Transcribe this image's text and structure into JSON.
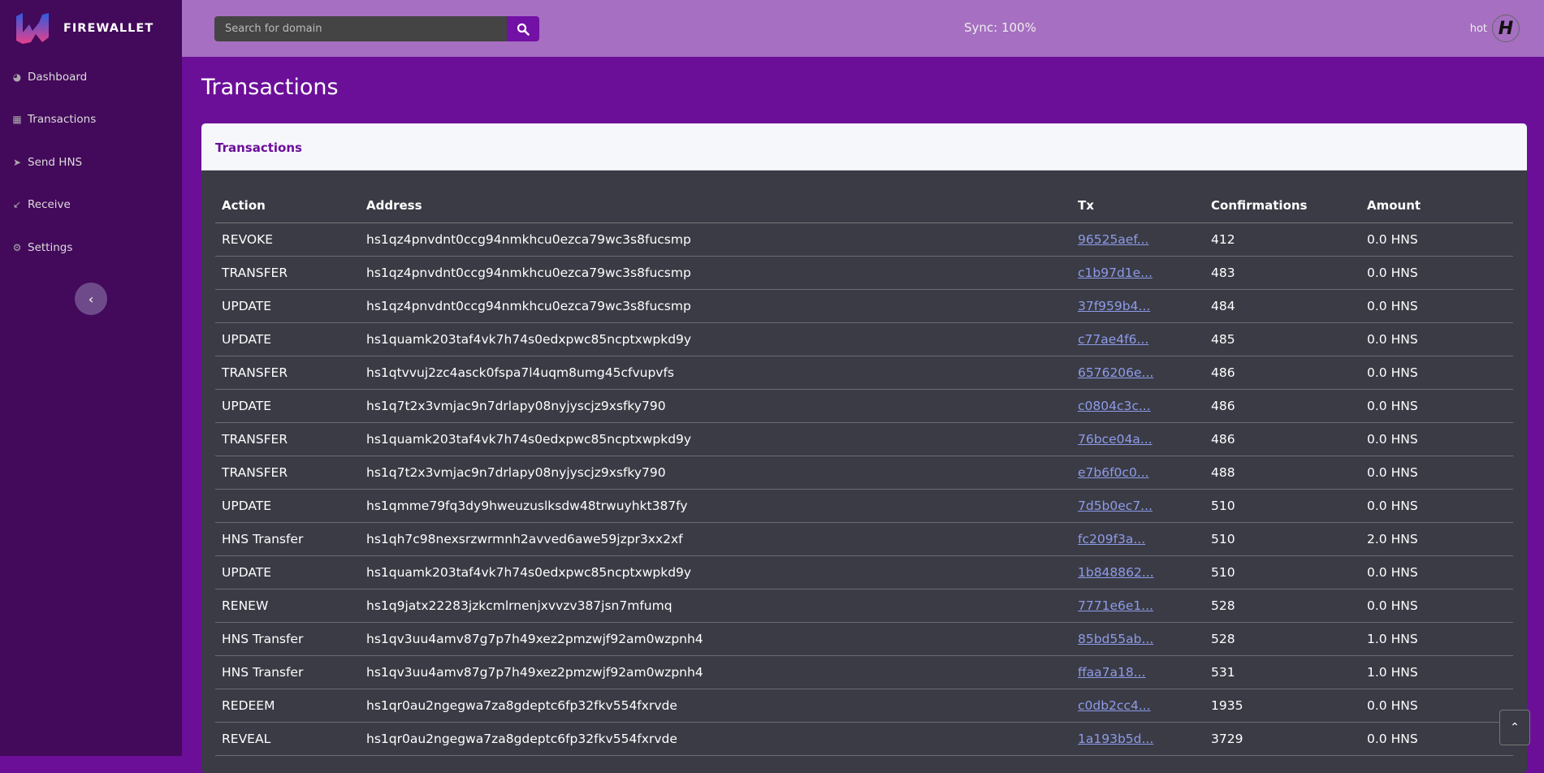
{
  "brand": {
    "name": "FIREWALLET"
  },
  "sidebar": {
    "items": [
      {
        "label": "Dashboard",
        "icon": "dashboard-icon"
      },
      {
        "label": "Transactions",
        "icon": "table-icon"
      },
      {
        "label": "Send HNS",
        "icon": "send-icon"
      },
      {
        "label": "Receive",
        "icon": "arrow-down-left-icon"
      },
      {
        "label": "Settings",
        "icon": "gear-icon"
      }
    ],
    "collapse_icon": "chevron-left-icon"
  },
  "topbar": {
    "search_placeholder": "Search for domain",
    "sync": "Sync: 100%",
    "wallet": "hot"
  },
  "page": {
    "title": "Transactions",
    "card_title": "Transactions"
  },
  "table": {
    "headers": [
      "Action",
      "Address",
      "Tx",
      "Confirmations",
      "Amount"
    ],
    "rows": [
      [
        "REVOKE",
        "hs1qz4pnvdnt0ccg94nmkhcu0ezca79wc3s8fucsmp",
        "96525aef...",
        "412",
        "0.0 HNS"
      ],
      [
        "TRANSFER",
        "hs1qz4pnvdnt0ccg94nmkhcu0ezca79wc3s8fucsmp",
        "c1b97d1e...",
        "483",
        "0.0 HNS"
      ],
      [
        "UPDATE",
        "hs1qz4pnvdnt0ccg94nmkhcu0ezca79wc3s8fucsmp",
        "37f959b4...",
        "484",
        "0.0 HNS"
      ],
      [
        "UPDATE",
        "hs1quamk203taf4vk7h74s0edxpwc85ncptxwpkd9y",
        "c77ae4f6...",
        "485",
        "0.0 HNS"
      ],
      [
        "TRANSFER",
        "hs1qtvvuj2zc4asck0fspa7l4uqm8umg45cfvupvfs",
        "6576206e...",
        "486",
        "0.0 HNS"
      ],
      [
        "UPDATE",
        "hs1q7t2x3vmjac9n7drlapy08nyjyscjz9xsfky790",
        "c0804c3c...",
        "486",
        "0.0 HNS"
      ],
      [
        "TRANSFER",
        "hs1quamk203taf4vk7h74s0edxpwc85ncptxwpkd9y",
        "76bce04a...",
        "486",
        "0.0 HNS"
      ],
      [
        "TRANSFER",
        "hs1q7t2x3vmjac9n7drlapy08nyjyscjz9xsfky790",
        "e7b6f0c0...",
        "488",
        "0.0 HNS"
      ],
      [
        "UPDATE",
        "hs1qmme79fq3dy9hweuzuslksdw48trwuyhkt387fy",
        "7d5b0ec7...",
        "510",
        "0.0 HNS"
      ],
      [
        "HNS Transfer",
        "hs1qh7c98nexsrzwrmnh2avved6awe59jzpr3xx2xf",
        "fc209f3a...",
        "510",
        "2.0 HNS"
      ],
      [
        "UPDATE",
        "hs1quamk203taf4vk7h74s0edxpwc85ncptxwpkd9y",
        "1b848862...",
        "510",
        "0.0 HNS"
      ],
      [
        "RENEW",
        "hs1q9jatx22283jzkcmlrnenjxvvzv387jsn7mfumq",
        "7771e6e1...",
        "528",
        "0.0 HNS"
      ],
      [
        "HNS Transfer",
        "hs1qv3uu4amv87g7p7h49xez2pmzwjf92am0wzpnh4",
        "85bd55ab...",
        "528",
        "1.0 HNS"
      ],
      [
        "HNS Transfer",
        "hs1qv3uu4amv87g7p7h49xez2pmzwjf92am0wzpnh4",
        "ffaa7a18...",
        "531",
        "1.0 HNS"
      ],
      [
        "REDEEM",
        "hs1qr0au2ngegwa7za8gdeptc6fp32fkv554fxrvde",
        "c0db2cc4...",
        "1935",
        "0.0 HNS"
      ],
      [
        "REVEAL",
        "hs1qr0au2ngegwa7za8gdeptc6fp32fkv554fxrvde",
        "1a193b5d...",
        "3729",
        "0.0 HNS"
      ]
    ]
  },
  "colors": {
    "sidebar": "#43095a",
    "topbar": "#a66fc1",
    "main": "#6b0f99",
    "table_bg": "#3a3b45",
    "link": "#8e9be8"
  }
}
